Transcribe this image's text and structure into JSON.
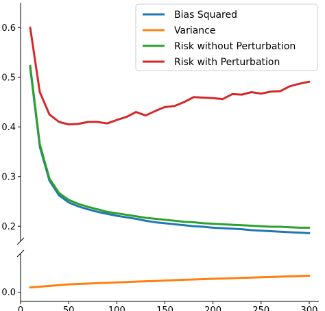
{
  "chart_data": {
    "type": "line",
    "title": "",
    "xlabel": "",
    "ylabel": "",
    "broken_y_axis": true,
    "legend_position": "top-right",
    "xlim": [
      0,
      310
    ],
    "xticks": [
      0,
      50,
      100,
      150,
      200,
      250,
      300
    ],
    "upper_panel": {
      "ylim": [
        0.17,
        0.65
      ],
      "yticks": [
        0.2,
        0.3,
        0.4,
        0.5,
        0.6
      ]
    },
    "lower_panel": {
      "ylim": [
        -0.006,
        0.025
      ],
      "yticks": [
        0.0
      ]
    },
    "x": [
      10,
      20,
      30,
      40,
      50,
      60,
      70,
      80,
      90,
      100,
      110,
      120,
      130,
      140,
      150,
      160,
      170,
      180,
      190,
      200,
      210,
      220,
      230,
      240,
      250,
      260,
      270,
      280,
      290,
      300
    ],
    "series": [
      {
        "name": "Bias Squared",
        "color": "#1f77b4",
        "panel": "upper",
        "values": [
          0.52,
          0.36,
          0.292,
          0.262,
          0.248,
          0.24,
          0.234,
          0.229,
          0.225,
          0.221,
          0.218,
          0.215,
          0.211,
          0.208,
          0.206,
          0.204,
          0.202,
          0.2,
          0.199,
          0.197,
          0.196,
          0.195,
          0.194,
          0.192,
          0.191,
          0.19,
          0.189,
          0.188,
          0.187,
          0.186
        ]
      },
      {
        "name": "Variance",
        "color": "#ff7f0e",
        "panel": "lower",
        "values": [
          0.003,
          0.0035,
          0.004,
          0.0045,
          0.005,
          0.0053,
          0.0055,
          0.0058,
          0.006,
          0.0063,
          0.0065,
          0.0068,
          0.007,
          0.0072,
          0.0075,
          0.0077,
          0.008,
          0.0082,
          0.0084,
          0.0086,
          0.0088,
          0.009,
          0.0092,
          0.0094,
          0.0096,
          0.0098,
          0.01,
          0.0102,
          0.0104,
          0.0106
        ]
      },
      {
        "name": "Risk without Perturbation",
        "color": "#2ca02c",
        "panel": "upper",
        "values": [
          0.523,
          0.365,
          0.296,
          0.267,
          0.253,
          0.245,
          0.239,
          0.234,
          0.229,
          0.226,
          0.223,
          0.22,
          0.217,
          0.215,
          0.213,
          0.211,
          0.209,
          0.208,
          0.206,
          0.205,
          0.204,
          0.203,
          0.202,
          0.201,
          0.2,
          0.199,
          0.199,
          0.198,
          0.197,
          0.197
        ]
      },
      {
        "name": "Risk with Perturbation",
        "color": "#d62728",
        "panel": "upper",
        "values": [
          0.6,
          0.47,
          0.425,
          0.41,
          0.405,
          0.406,
          0.41,
          0.41,
          0.407,
          0.414,
          0.42,
          0.43,
          0.423,
          0.432,
          0.44,
          0.442,
          0.45,
          0.46,
          0.459,
          0.458,
          0.456,
          0.466,
          0.465,
          0.47,
          0.467,
          0.471,
          0.472,
          0.482,
          0.487,
          0.491
        ]
      }
    ]
  }
}
